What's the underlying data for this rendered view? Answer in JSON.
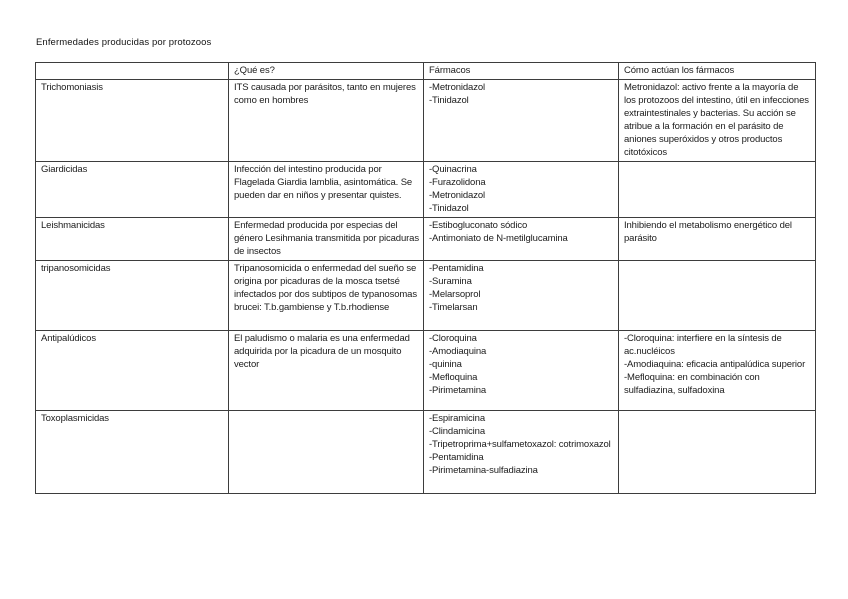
{
  "page": {
    "title": "Enfermedades producidas por protozoos"
  },
  "table": {
    "headers": [
      "",
      "¿Qué es?",
      "Fármacos",
      "Cómo actúan los fármacos"
    ],
    "rows": [
      {
        "disease": "Trichomoniasis",
        "que_es": [
          "ITS causada por parásitos, tanto en mujeres como en hombres"
        ],
        "farmacos": [
          "-Metronidazol",
          "-Tinidazol"
        ],
        "como_actuan": [
          "Metronidazol: activo frente a la mayoría de los protozoos del intestino, útil en infecciones extraintestinales y bacterias. Su acción se atribue a la formación en el parásito de aniones superóxidos y otros productos citotóxicos"
        ]
      },
      {
        "disease": "Giardicidas",
        "que_es": [
          "Infección del intestino producida por Flagelada Giardia lamblia, asintomática. Se pueden dar en niños y presentar quistes."
        ],
        "farmacos": [
          "-Quinacrina",
          "-Furazolidona",
          "-Metronidazol",
          "-Tinidazol"
        ],
        "como_actuan": []
      },
      {
        "disease": "Leishmanicidas",
        "que_es": [
          "Enfermedad producida por especias del género Lesihmania transmitida por picaduras de insectos"
        ],
        "farmacos": [
          "-Estibogluconato sódico",
          "-Antimoniato de N-metilglucamina"
        ],
        "como_actuan": [
          "Inhibiendo el metabolismo energético del parásito"
        ]
      },
      {
        "disease": "tripanosomicidas",
        "que_es": [
          "Tripanosomicida o enfermedad del sueño se origina por picaduras de la mosca tsetsé infectados por dos subtipos de typanosomas brucei: T.b.gambiense y T.b.rhodiense"
        ],
        "farmacos": [
          "-Pentamidina",
          "-Suramina",
          "-Melarsoprol",
          "-Timelarsan"
        ],
        "como_actuan": []
      },
      {
        "disease": "Antipalúdicos",
        "que_es": [
          "El paludismo o malaria es una enfermedad adquirida por la picadura de un mosquito vector"
        ],
        "farmacos": [
          "-Cloroquina",
          "-Amodiaquina",
          "-quinina",
          "-Mefloquina",
          "-Pirimetamina"
        ],
        "como_actuan": [
          "-Cloroquina: interfiere en la síntesis de ac.nucléicos",
          "-Amodiaquina: eficacia antipalúdica superior",
          "-Mefloquina: en combinación con sulfadiazina, sulfadoxina"
        ]
      },
      {
        "disease": "Toxoplasmicidas",
        "que_es": [],
        "farmacos": [
          "-Espiramicina",
          "-Clindamicina",
          "-Tripetroprima+sulfametoxazol: cotrimoxazol",
          "-Pentamidina",
          "-Pirimetamina-sulfadiazina"
        ],
        "como_actuan": []
      }
    ]
  }
}
